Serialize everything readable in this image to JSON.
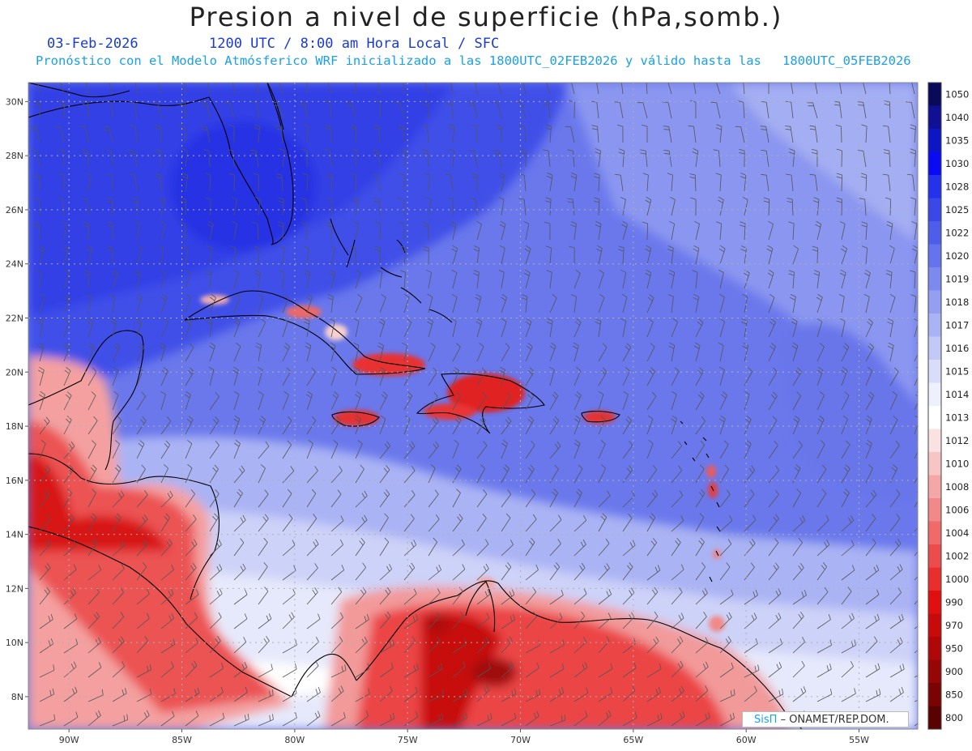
{
  "header": {
    "title": "Presion a nivel de superficie (hPa,somb.)",
    "date": "03-Feb-2026",
    "time_info": "1200 UTC / 8:00 am Hora Local / SFC",
    "model_info": "Pronóstico con el Modelo Atmósferico WRF inicializado a las 1800UTC_02FEB2026 y válido hasta las",
    "valid_until": "1800UTC_05FEB2026"
  },
  "map": {
    "lon_labels": [
      "90W",
      "85W",
      "80W",
      "75W",
      "70W",
      "65W",
      "60W",
      "55W"
    ],
    "lat_labels": [
      "30N",
      "28N",
      "26N",
      "24N",
      "22N",
      "20N",
      "18N",
      "16N",
      "14N",
      "12N",
      "10N",
      "8N"
    ],
    "extent": {
      "lon_min": -91.8,
      "lon_max": -52.4,
      "lat_min": 6.8,
      "lat_max": 30.7
    }
  },
  "colorbar": {
    "levels": [
      {
        "label": "1050",
        "color": "#0a0a5a"
      },
      {
        "label": "1040",
        "color": "#101095"
      },
      {
        "label": "1035",
        "color": "#0c16c4"
      },
      {
        "label": "1030",
        "color": "#0a0af5"
      },
      {
        "label": "1028",
        "color": "#2532ec"
      },
      {
        "label": "1025",
        "color": "#3a48e8"
      },
      {
        "label": "1022",
        "color": "#4f5eea"
      },
      {
        "label": "1020",
        "color": "#6574ec"
      },
      {
        "label": "1019",
        "color": "#7c89ee"
      },
      {
        "label": "1018",
        "color": "#959ff2"
      },
      {
        "label": "1017",
        "color": "#aab3f4"
      },
      {
        "label": "1016",
        "color": "#c3c9f7"
      },
      {
        "label": "1015",
        "color": "#d9ddf9"
      },
      {
        "label": "1014",
        "color": "#eef0fc"
      },
      {
        "label": "1013",
        "color": "#ffffff"
      },
      {
        "label": "1012",
        "color": "#fbe2e2"
      },
      {
        "label": "1010",
        "color": "#f8c5c5"
      },
      {
        "label": "1008",
        "color": "#f5a6a6"
      },
      {
        "label": "1006",
        "color": "#f28888"
      },
      {
        "label": "1004",
        "color": "#f06a6a"
      },
      {
        "label": "1002",
        "color": "#ec4c4c"
      },
      {
        "label": "1000",
        "color": "#e92e2e"
      },
      {
        "label": "990",
        "color": "#e01010"
      },
      {
        "label": "970",
        "color": "#c80a0a"
      },
      {
        "label": "950",
        "color": "#b00808"
      },
      {
        "label": "900",
        "color": "#960606"
      },
      {
        "label": "850",
        "color": "#7a0404"
      },
      {
        "label": "800",
        "color": "#5a0202"
      }
    ]
  },
  "credit": {
    "logo": "SisΠ",
    "text": "– ONAMET/REP.DOM."
  }
}
